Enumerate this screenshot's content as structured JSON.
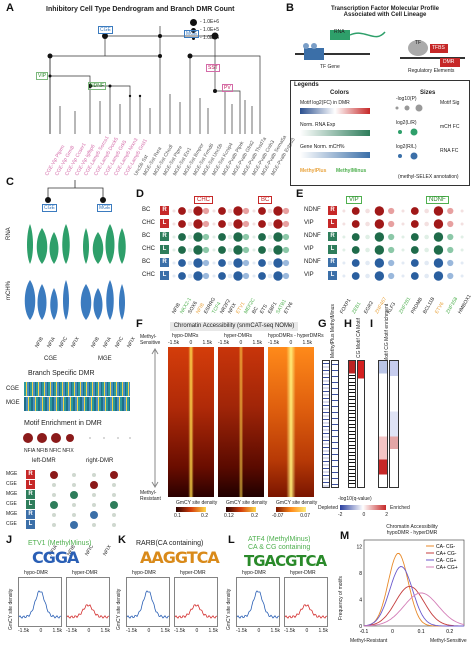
{
  "panels": {
    "A": {
      "label": "A",
      "title": "Inhibitory Cell Type Dendrogram and Branch DMR Count",
      "legend": [
        "- 1.0E+6",
        "- 1.0E+5",
        "- 1.0E+4"
      ],
      "nodes": [
        "VIP",
        "NDNF",
        "MGE",
        "CGE",
        "SST",
        "PV"
      ],
      "leaves": [
        "CGE-Vip Ptprm",
        "CGE-Vip Grm8",
        "CGE-Vip Ccser1",
        "CGE-Vip Igfbp6",
        "CGE-Lamp5 Sorcs1",
        "CGE-Lamp5 Dock5",
        "CGE-Lamp5 Grk5",
        "CGE-Lamp5 Nrxn3",
        "CGE-Lamp5 Grid1",
        "Unc5b Sst",
        "MGE-Sst Rxra",
        "MGE-Sst Chodl",
        "MGE-Sst Ptpre",
        "MGE-Sst Etv1",
        "MGE-Sst Bmper",
        "MGE-Sst Frmd6",
        "MGE-Sst Unc5b",
        "MGE-Sst Kcnip4",
        "MGE-Pvalb Ptprk",
        "MGE-Pvalb Gfra2",
        "MGE-Pvalb Thsd7a",
        "MGE-Pvalb Cnih3",
        "MGE-Pvalb Sema5a",
        "MGE-Pvalb Entpd3"
      ]
    },
    "B": {
      "label": "B",
      "title_line1": "Transcription Factor Molecular Profile",
      "title_line2": "Associated with Cell Lineage",
      "schematic": {
        "rna": "RNA",
        "mch": "mCH",
        "tf": "TF",
        "tf_gene": "TF Gene",
        "tfbs": "TFBS",
        "dmr": "DMR",
        "regulatory": "Regulatory Elements"
      },
      "legends_title": "Legends",
      "colors_title": "Colors",
      "sizes_title": "Sizes",
      "rows": [
        {
          "desc": "Motif log2(FC) in DMR",
          "size": "Motif Sig"
        },
        {
          "desc": "Norm. RNA Exp",
          "size": "mCH FC"
        },
        {
          "desc": "Gene Norm. mCH%",
          "size": "RNA FC"
        }
      ],
      "scale_labels": [
        "-1",
        "0",
        "1",
        "0",
        "2",
        "0",
        "1",
        "2"
      ],
      "size_labels": [
        "-log10(P)",
        "log2(L/R)",
        "log2(R/L)"
      ],
      "methyl_plus": "MethylPlus",
      "methyl_minus": "MethylMinus",
      "footnote": "(methyl-SELEX annotation)"
    },
    "C": {
      "label": "C",
      "nodes": [
        "CGE",
        "MGE"
      ],
      "ylabels": [
        "RNA",
        "mCH%"
      ],
      "genes": [
        "NFIB",
        "NFIA",
        "NFIC",
        "NFIX"
      ],
      "groups": [
        "CGE",
        "MGE"
      ],
      "branch_title": "Branch Specific DMR",
      "row_labels": [
        "CGE",
        "MGE"
      ],
      "motif_title": "Motif Enrichment in DMR",
      "motif_genes": [
        "NFIA",
        "NFIB",
        "NFIC",
        "NFIX",
        "NFIA",
        "NFIB",
        "NFIC",
        "NFIX"
      ],
      "dmr_groups": [
        "left-DMR",
        "right-DMR"
      ],
      "tags": [
        "MGE",
        "CGE",
        "MGE",
        "CGE",
        "MGE",
        "CGE"
      ]
    },
    "D": {
      "label": "D",
      "groups": [
        "CHC",
        "BC"
      ],
      "rows": [
        "BC",
        "CHC",
        "BC",
        "CHC",
        "BC",
        "CHC"
      ],
      "tags": [
        "R",
        "L",
        "R",
        "L",
        "R",
        "L"
      ],
      "genes": [
        "NFIB",
        "NKX2-1",
        "SOX6",
        "NFIB",
        "ESRRG",
        "TCF4",
        "NR2F2",
        "NFIX",
        "ETV1",
        "MEF2C",
        "BC",
        "ETS",
        "EBF1",
        "SATB1",
        "ETV6"
      ]
    },
    "E": {
      "label": "E",
      "groups": [
        "VIP",
        "NDNF"
      ],
      "rows": [
        "NDNF",
        "VIP",
        "NDNF",
        "VIP",
        "NDNF",
        "VIP"
      ],
      "tags": [
        "R",
        "L",
        "R",
        "L",
        "R",
        "L"
      ],
      "genes": [
        "FOXP1",
        "ZEB1",
        "EGR2",
        "ZNF467",
        "KLF3",
        "ZNF281",
        "PRDM8",
        "BCL11B",
        "ETV6",
        "ZNF358",
        "HMBOX1"
      ]
    },
    "F": {
      "label": "F",
      "title": "Chromatin Accessibility (snmCAT-seq NOMe)",
      "subtitles": [
        "hypo-DMRs",
        "hyper-DMRs",
        "hypoDMRs - hyperDMRs"
      ],
      "ticks": [
        "-1.5k",
        "0",
        "1.5k"
      ],
      "y_top": "Methyl-Sensitive",
      "y_bottom": "Methyl-Resistant",
      "cbar_title": "GmCY site density",
      "cbar1": [
        "0.1",
        "0.2"
      ],
      "cbar2": [
        "0.12",
        "0.2"
      ],
      "cbar3": [
        "-0.07",
        "0.07"
      ]
    },
    "G": {
      "label": "G",
      "col_label": "MethylPlus MethylMinus"
    },
    "H": {
      "label": "H",
      "col_label": "CG Motif CA Motif"
    },
    "I": {
      "label": "I",
      "col_label": "CA Motif CG Motif enrichment"
    },
    "GHI_legend": {
      "title": "-log10(q-value)",
      "depleted": "Depleted",
      "enriched": "Enriched",
      "ticks": [
        "-2",
        "0",
        "2"
      ]
    },
    "J": {
      "label": "J",
      "title": "ETV1 (MethylMinus)",
      "motif": "CGGA",
      "sub": [
        "hypo-DMR",
        "hyper-DMR"
      ],
      "ticks": [
        "-1.5k",
        "0",
        "1.5k"
      ],
      "ylabel": "GmCY site density"
    },
    "K": {
      "label": "K",
      "title": "RARB(CA containing)",
      "motif": "AAGGTCA",
      "sub": [
        "hypo-DMR",
        "hyper-DMR"
      ],
      "ticks": [
        "-1.5k",
        "0",
        "1.5k"
      ],
      "ylabel": "GmCY site density"
    },
    "L": {
      "label": "L",
      "title_line1": "ATF4 (MethylMinus)",
      "title_line2": "CA & CG containing",
      "motif": "TGACGTCA",
      "sub": [
        "hypo-DMR",
        "hyper-DMR"
      ],
      "ticks": [
        "-1.5k",
        "0",
        "1.5k"
      ],
      "ylabel": "GmCY site density"
    },
    "M": {
      "label": "M",
      "title_line1": "Chromatin Accessibility",
      "title_line2": "hypoDMR - hyperDMR",
      "ylabel": "Frequency of motifs",
      "xticks": [
        "-0.1",
        "0",
        "0.1",
        "0.2"
      ],
      "yticks": [
        "0",
        "4",
        "8",
        "12"
      ],
      "legend": [
        "CA- CG-",
        "CA+ CG-",
        "CA- CG+",
        "CA+ CG+"
      ],
      "x_left": "Methyl-Resistant",
      "x_right": "Methyl-Sensitive"
    }
  },
  "colors": {
    "methyl_plus": "#e8a33d",
    "methyl_minus": "#4fb04f",
    "red_tag": "#c62828",
    "green_tag": "#2e7d5b",
    "blue_tag": "#3b6fa8",
    "cge_blue": "#3b7bbf",
    "mge_green": "#2e9f6a",
    "pink_leaf": "#d46aa8",
    "heat_dark": "#3a0000",
    "heat_mid": "#d43d0a",
    "heat_hot": "#ffd84a",
    "m_series": [
      "#e88a2a",
      "#c43c3c",
      "#6a5acd",
      "#d47fb8"
    ]
  }
}
